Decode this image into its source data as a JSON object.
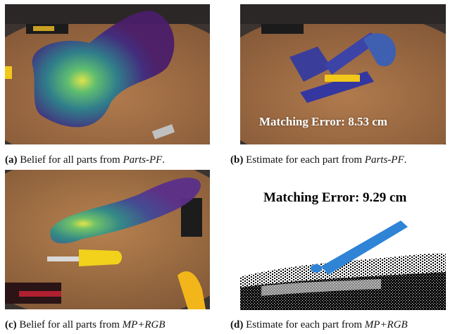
{
  "panels": [
    {
      "id": "a",
      "label": "(a)",
      "caption_prefix": "Belief for all parts from",
      "method": "Parts-PF",
      "caption_suffix": "."
    },
    {
      "id": "b",
      "label": "(b)",
      "caption_prefix": "Estimate for each part from",
      "method": "Parts-PF",
      "caption_suffix": ".",
      "overlay_text": "Matching Error: 8.53 cm"
    },
    {
      "id": "c",
      "label": "(c)",
      "caption_prefix": "Belief for all parts from",
      "method": "MP+RGB",
      "caption_suffix": ""
    },
    {
      "id": "d",
      "label": "(d)",
      "caption_prefix": "Estimate for each part from",
      "method": "MP+RGB",
      "caption_suffix": "",
      "heading_text": "Matching Error: 9.29 cm"
    }
  ],
  "colors": {
    "table_wood": "#9a6a44",
    "belief_dark": "#3b1f6e",
    "belief_mid": "#2a8a8c",
    "belief_bright": "#d9e84a",
    "estimate_blue": "#2f84d6",
    "screwdriver_yellow": "#f2d21a"
  }
}
